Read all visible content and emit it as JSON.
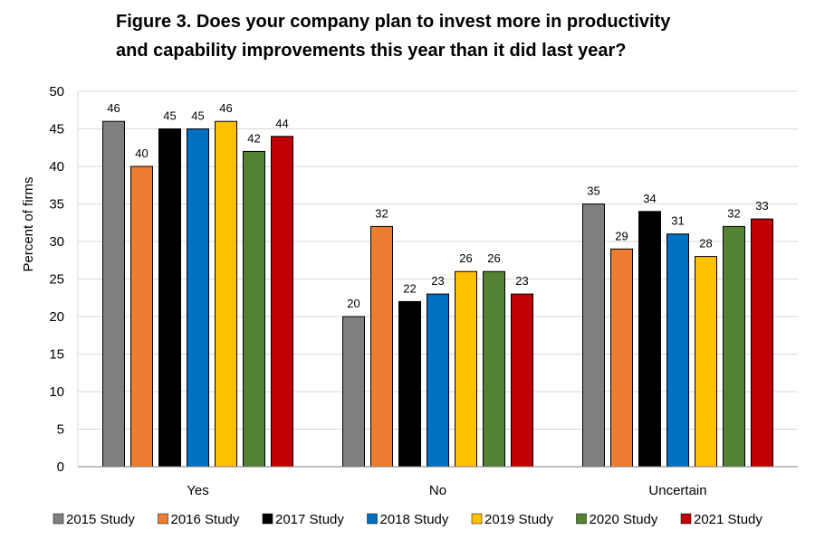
{
  "chart_data": {
    "type": "bar",
    "title_lines": [
      "Figure 3. Does your company plan to invest more in productivity",
      "and capability improvements this year than it did last year?"
    ],
    "ylabel": "Percent of firms",
    "xlabel": "",
    "ylim": [
      0,
      50
    ],
    "yticks": [
      0,
      5,
      10,
      15,
      20,
      25,
      30,
      35,
      40,
      45,
      50
    ],
    "grid": true,
    "legend_position": "bottom",
    "categories": [
      "Yes",
      "No",
      "Uncertain"
    ],
    "series": [
      {
        "name": "2015 Study",
        "color": "#7f7f7f",
        "values": [
          46,
          20,
          35
        ],
        "label_color": "#000000"
      },
      {
        "name": "2016 Study",
        "color": "#ed7d31",
        "values": [
          40,
          32,
          29
        ],
        "label_color": "#000000"
      },
      {
        "name": "2017 Study",
        "color": "#000000",
        "values": [
          45,
          22,
          34
        ],
        "label_color": "#000000"
      },
      {
        "name": "2018 Study",
        "color": "#0070c0",
        "values": [
          45,
          23,
          31
        ],
        "label_color": "#000000"
      },
      {
        "name": "2019 Study",
        "color": "#ffc000",
        "values": [
          46,
          26,
          28
        ],
        "label_color": "#000000"
      },
      {
        "name": "2020 Study",
        "color": "#548235",
        "values": [
          42,
          26,
          32
        ],
        "label_color": "#595959"
      },
      {
        "name": "2021 Study",
        "color": "#c00000",
        "values": [
          44,
          23,
          33
        ],
        "label_color": "#595959"
      }
    ]
  }
}
